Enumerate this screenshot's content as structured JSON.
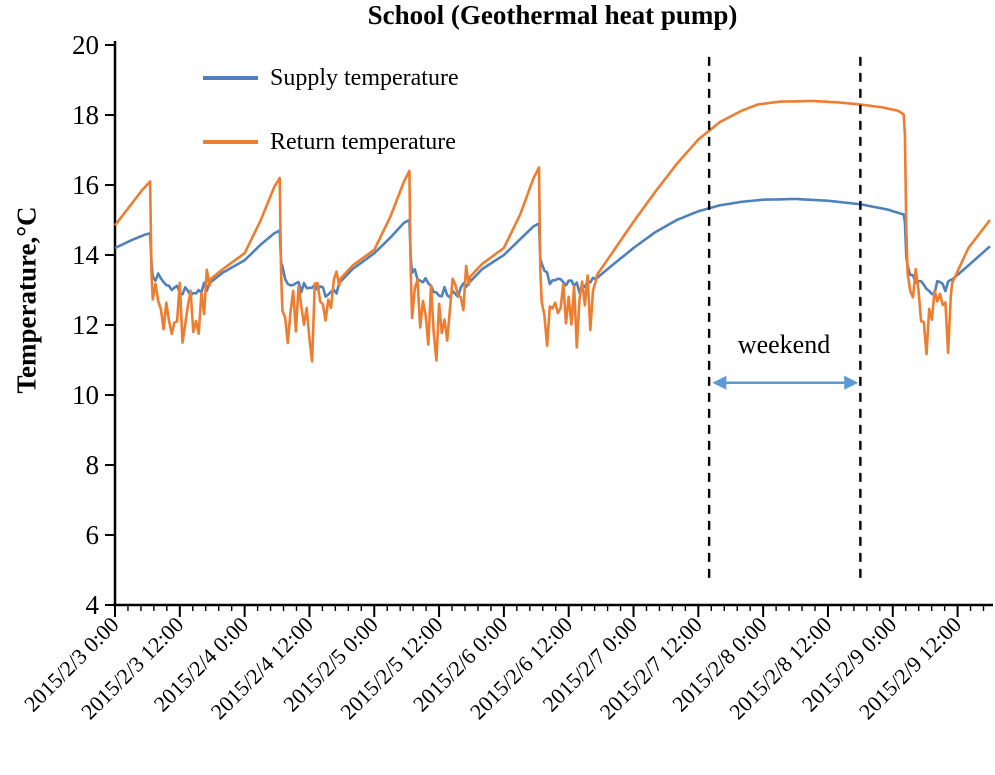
{
  "chart_data": {
    "type": "line",
    "title": "School (Geothermal heat pump)",
    "xlabel": "",
    "ylabel": "Temperature,°C",
    "ylim": [
      4,
      20
    ],
    "y_tick_step": 2,
    "xlim_hours": [
      0,
      162
    ],
    "x_minor_tick_hours": 2.4,
    "grid": false,
    "legend_position": "top-left-inside",
    "axis_color": "#000000",
    "noise_seed": 7,
    "x_ticks": [
      {
        "hour": 0,
        "label": "2015/2/3 0:00"
      },
      {
        "hour": 12,
        "label": "2015/2/3 12:00"
      },
      {
        "hour": 24,
        "label": "2015/2/4 0:00"
      },
      {
        "hour": 36,
        "label": "2015/2/4 12:00"
      },
      {
        "hour": 48,
        "label": "2015/2/5 0:00"
      },
      {
        "hour": 60,
        "label": "2015/2/5 12:00"
      },
      {
        "hour": 72,
        "label": "2015/2/6 0:00"
      },
      {
        "hour": 84,
        "label": "2015/2/6 12:00"
      },
      {
        "hour": 96,
        "label": "2015/2/7 0:00"
      },
      {
        "hour": 108,
        "label": "2015/2/7 12:00"
      },
      {
        "hour": 120,
        "label": "2015/2/8 0:00"
      },
      {
        "hour": 132,
        "label": "2015/2/8 12:00"
      },
      {
        "hour": 144,
        "label": "2015/2/9 0:00"
      },
      {
        "hour": 156,
        "label": "2015/2/9 12:00"
      }
    ],
    "series": [
      {
        "name": "Supply temperature",
        "color": "#4F81BD",
        "keyframes": [
          [
            0,
            14.2
          ],
          [
            3,
            14.42
          ],
          [
            5.5,
            14.58
          ],
          [
            6.5,
            14.62
          ],
          [
            6.8,
            13.6
          ],
          [
            8,
            13.3
          ],
          [
            11,
            13.05
          ],
          [
            14,
            12.95
          ],
          [
            16,
            13.0
          ],
          [
            17.4,
            13.1
          ],
          [
            17.5,
            13.2
          ],
          [
            20,
            13.5
          ],
          [
            24,
            13.85
          ],
          [
            27,
            14.3
          ],
          [
            29.5,
            14.62
          ],
          [
            30.5,
            14.7
          ],
          [
            30.8,
            13.6
          ],
          [
            32,
            13.3
          ],
          [
            35,
            13.05
          ],
          [
            38,
            12.95
          ],
          [
            40,
            13.0
          ],
          [
            41.4,
            13.1
          ],
          [
            41.5,
            13.2
          ],
          [
            44,
            13.6
          ],
          [
            48,
            14.05
          ],
          [
            51,
            14.5
          ],
          [
            53.5,
            14.92
          ],
          [
            54.5,
            15.0
          ],
          [
            54.8,
            13.7
          ],
          [
            56,
            13.35
          ],
          [
            59,
            13.0
          ],
          [
            62,
            12.9
          ],
          [
            64,
            13.0
          ],
          [
            65.4,
            13.1
          ],
          [
            65.5,
            13.2
          ],
          [
            68,
            13.6
          ],
          [
            72,
            14.0
          ],
          [
            75,
            14.45
          ],
          [
            77.5,
            14.82
          ],
          [
            78.5,
            14.9
          ],
          [
            78.8,
            13.7
          ],
          [
            80,
            13.35
          ],
          [
            83,
            13.1
          ],
          [
            86,
            13.1
          ],
          [
            88,
            13.2
          ],
          [
            88.9,
            13.3
          ],
          [
            92,
            13.7
          ],
          [
            96,
            14.2
          ],
          [
            100,
            14.65
          ],
          [
            104,
            15.0
          ],
          [
            108,
            15.25
          ],
          [
            112,
            15.42
          ],
          [
            116,
            15.52
          ],
          [
            120,
            15.58
          ],
          [
            126,
            15.6
          ],
          [
            132,
            15.55
          ],
          [
            138,
            15.45
          ],
          [
            143,
            15.3
          ],
          [
            146.2,
            15.15
          ],
          [
            146.6,
            13.55
          ],
          [
            148,
            13.25
          ],
          [
            151,
            13.05
          ],
          [
            154,
            13.15
          ],
          [
            154.8,
            13.3
          ],
          [
            155,
            13.3
          ],
          [
            158,
            13.7
          ],
          [
            162,
            14.25
          ]
        ],
        "noise_windows": [
          {
            "t0": 6.9,
            "t1": 17.3,
            "amp": 0.18
          },
          {
            "t0": 30.9,
            "t1": 41.3,
            "amp": 0.18
          },
          {
            "t0": 54.9,
            "t1": 65.3,
            "amp": 0.18
          },
          {
            "t0": 78.9,
            "t1": 88.8,
            "amp": 0.18
          },
          {
            "t0": 146.7,
            "t1": 154.7,
            "amp": 0.18
          }
        ]
      },
      {
        "name": "Return temperature",
        "color": "#ED7D31",
        "keyframes": [
          [
            0,
            14.85
          ],
          [
            3,
            15.45
          ],
          [
            5,
            15.85
          ],
          [
            6.5,
            16.1
          ],
          [
            6.8,
            12.9
          ],
          [
            8,
            12.65
          ],
          [
            11,
            12.45
          ],
          [
            14,
            12.45
          ],
          [
            16,
            12.65
          ],
          [
            17.4,
            12.95
          ],
          [
            17.6,
            13.3
          ],
          [
            20,
            13.6
          ],
          [
            24,
            14.05
          ],
          [
            27,
            15.0
          ],
          [
            29.5,
            15.95
          ],
          [
            30.5,
            16.2
          ],
          [
            30.8,
            12.95
          ],
          [
            32,
            12.7
          ],
          [
            35,
            12.45
          ],
          [
            38,
            12.45
          ],
          [
            40,
            12.7
          ],
          [
            41.4,
            12.95
          ],
          [
            41.6,
            13.3
          ],
          [
            44,
            13.7
          ],
          [
            48,
            14.15
          ],
          [
            51,
            15.1
          ],
          [
            53.5,
            16.1
          ],
          [
            54.5,
            16.4
          ],
          [
            54.8,
            13.0
          ],
          [
            56,
            12.7
          ],
          [
            59,
            12.4
          ],
          [
            62,
            12.4
          ],
          [
            64,
            12.7
          ],
          [
            65.4,
            12.95
          ],
          [
            65.6,
            13.35
          ],
          [
            68,
            13.75
          ],
          [
            72,
            14.2
          ],
          [
            75,
            15.15
          ],
          [
            77.5,
            16.2
          ],
          [
            78.5,
            16.5
          ],
          [
            78.8,
            13.0
          ],
          [
            80,
            12.8
          ],
          [
            83,
            12.5
          ],
          [
            86,
            12.6
          ],
          [
            88,
            12.9
          ],
          [
            88.9,
            13.1
          ],
          [
            89.1,
            13.4
          ],
          [
            92,
            14.05
          ],
          [
            96,
            14.95
          ],
          [
            100,
            15.8
          ],
          [
            104,
            16.6
          ],
          [
            108,
            17.3
          ],
          [
            112,
            17.8
          ],
          [
            116,
            18.12
          ],
          [
            119,
            18.3
          ],
          [
            123,
            18.38
          ],
          [
            129,
            18.4
          ],
          [
            134,
            18.36
          ],
          [
            138,
            18.3
          ],
          [
            142,
            18.22
          ],
          [
            145,
            18.12
          ],
          [
            146.2,
            18.0
          ],
          [
            146.6,
            13.7
          ],
          [
            148,
            13.0
          ],
          [
            150,
            12.45
          ],
          [
            152,
            12.25
          ],
          [
            154,
            12.55
          ],
          [
            154.8,
            12.85
          ],
          [
            155,
            13.2
          ],
          [
            158,
            14.2
          ],
          [
            162,
            15.0
          ]
        ],
        "noise_windows": [
          {
            "t0": 6.9,
            "t1": 17.3,
            "amp": 0.85
          },
          {
            "t0": 30.9,
            "t1": 41.3,
            "amp": 0.85
          },
          {
            "t0": 54.9,
            "t1": 65.3,
            "amp": 0.85
          },
          {
            "t0": 78.9,
            "t1": 88.8,
            "amp": 0.85
          },
          {
            "t0": 146.7,
            "t1": 154.7,
            "amp": 0.9
          }
        ]
      }
    ],
    "dashed_lines": {
      "hours": [
        110,
        138
      ],
      "top_value": 19.66,
      "bottom_value": 4.66,
      "color": "#000000"
    },
    "annotations": [
      {
        "type": "text",
        "text": "weekend",
        "x_hour": 124,
        "y_value": 11.3
      }
    ],
    "arrow": {
      "x0_hour": 110.6,
      "x1_hour": 137.6,
      "y_value": 10.35,
      "color": "#5B9BD5"
    }
  }
}
